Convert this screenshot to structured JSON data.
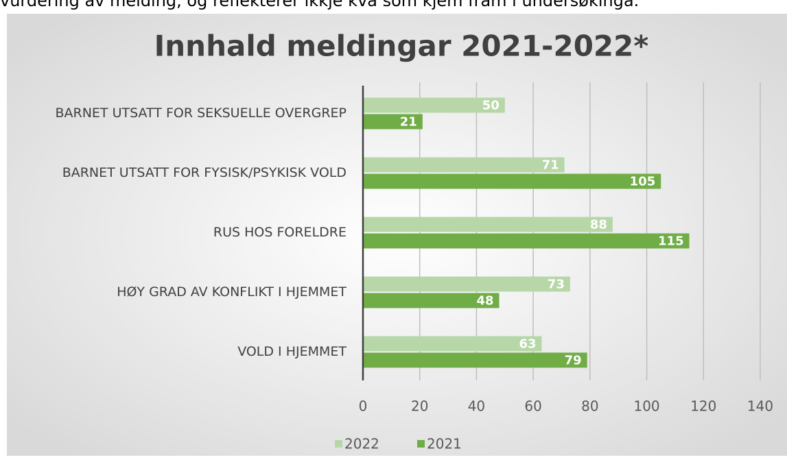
{
  "intro_text": "vurdering av melding, og reflekterer ikkje kva som kjem fram i undersøkinga.",
  "chart_data": {
    "type": "hbar",
    "title": "Innhald meldingar 2021-2022*",
    "categories": [
      "BARNET UTSATT FOR SEKSUELLE OVERGREP",
      "BARNET UTSATT FOR FYSISK/PSYKISK VOLD",
      "RUS HOS FORELDRE",
      "HØY GRAD AV KONFLIKT I HJEMMET",
      "VOLD I HJEMMET"
    ],
    "series": [
      {
        "name": "2022",
        "color": "#b7d7a8",
        "values": [
          50,
          71,
          88,
          73,
          63
        ]
      },
      {
        "name": "2021",
        "color": "#70ad47",
        "values": [
          21,
          105,
          115,
          48,
          79
        ]
      }
    ],
    "xlim": [
      0,
      140
    ],
    "xticks": [
      0,
      20,
      40,
      60,
      80,
      100,
      120,
      140
    ],
    "grid": true,
    "legend": "bottom"
  }
}
